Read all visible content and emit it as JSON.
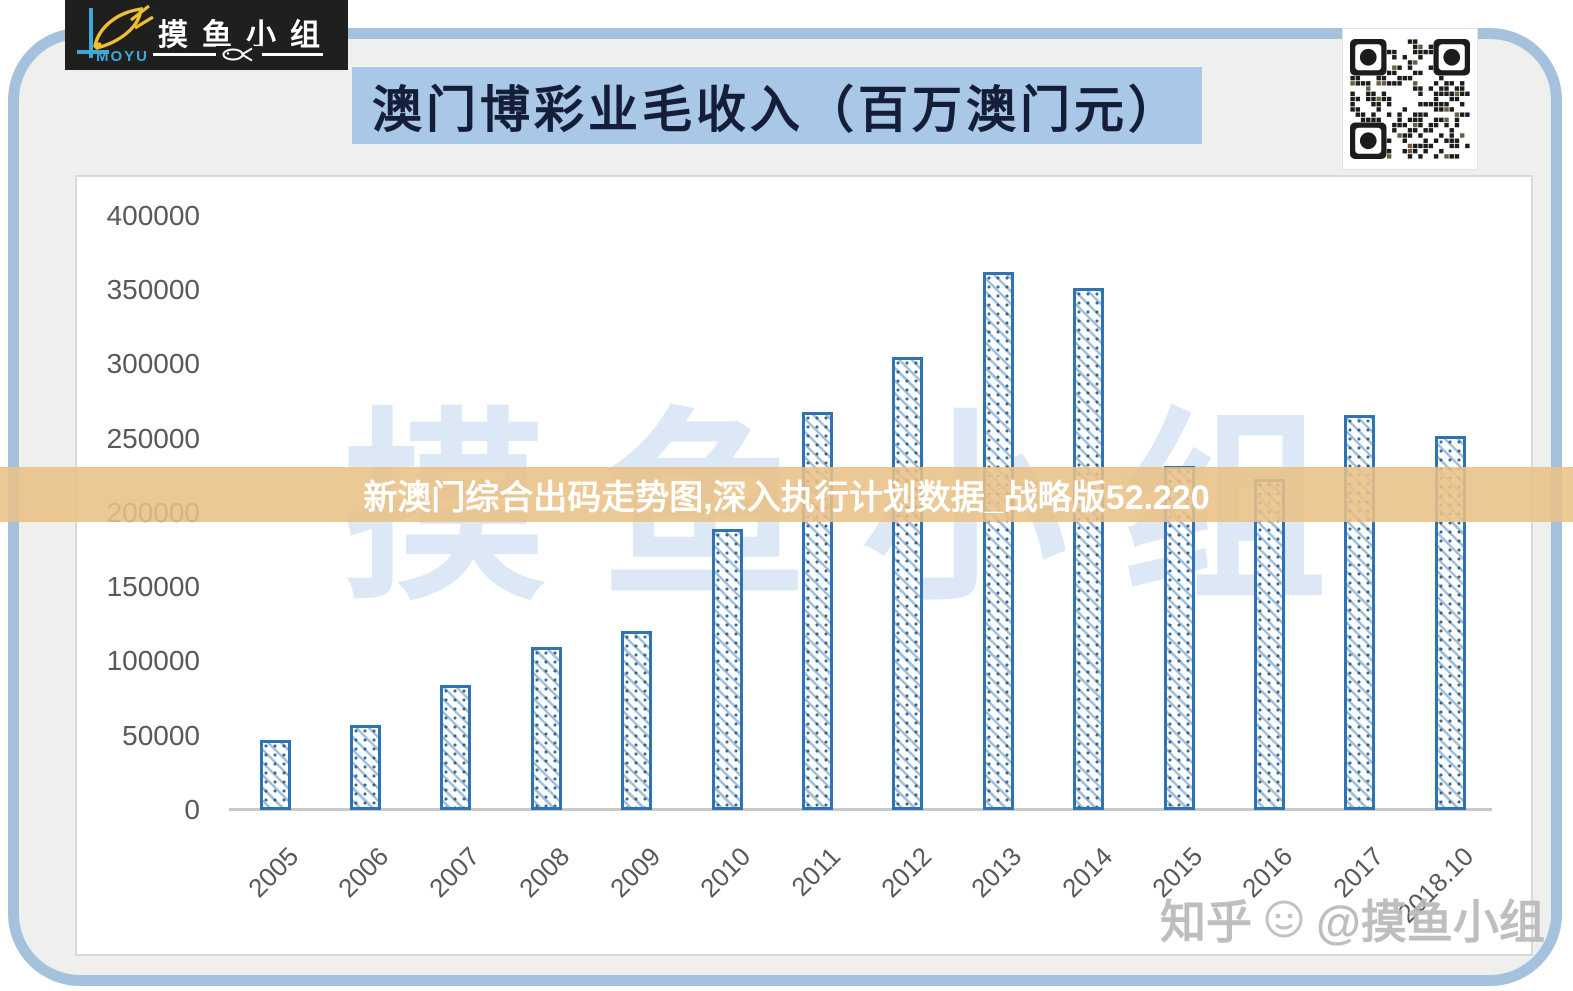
{
  "header": {
    "title": "澳门博彩业毛收入（百万澳门元）",
    "banner_bg": "#a9c7e7",
    "title_color": "#141e38"
  },
  "logo": {
    "brand": "MOYU",
    "group": "摸鱼小组",
    "bg": "#1f1f1d",
    "fish_color": "#f0c030",
    "accent_color": "#3fa9d8"
  },
  "overlay_banner": {
    "text": "新澳门综合出码走势图,深入执行计划数据_战略版52.220",
    "bg": "#e9c086",
    "text_color": "#ffffff"
  },
  "watermarks": {
    "chart_bg": "摸鱼小组",
    "source": "知乎",
    "account": "@摸鱼小组"
  },
  "chart_data": {
    "type": "bar",
    "title": "澳门博彩业毛收入（百万澳门元）",
    "categories": [
      "2005",
      "2006",
      "2007",
      "2008",
      "2009",
      "2010",
      "2011",
      "2012",
      "2013",
      "2014",
      "2015",
      "2016",
      "2017",
      "2018.10"
    ],
    "values": [
      47000,
      57500,
      84000,
      110000,
      120500,
      189000,
      268000,
      305000,
      362000,
      351000,
      231500,
      223000,
      266000,
      252000
    ],
    "ylim": [
      0,
      400000
    ],
    "yticks": [
      0,
      50000,
      100000,
      150000,
      200000,
      250000,
      300000,
      350000,
      400000
    ],
    "grid": false,
    "legend": "none",
    "bar_border_color": "#2e74b5",
    "bar_fill": "white-with-blue-diagonal-hatch",
    "axis_label_color": "#595959"
  }
}
